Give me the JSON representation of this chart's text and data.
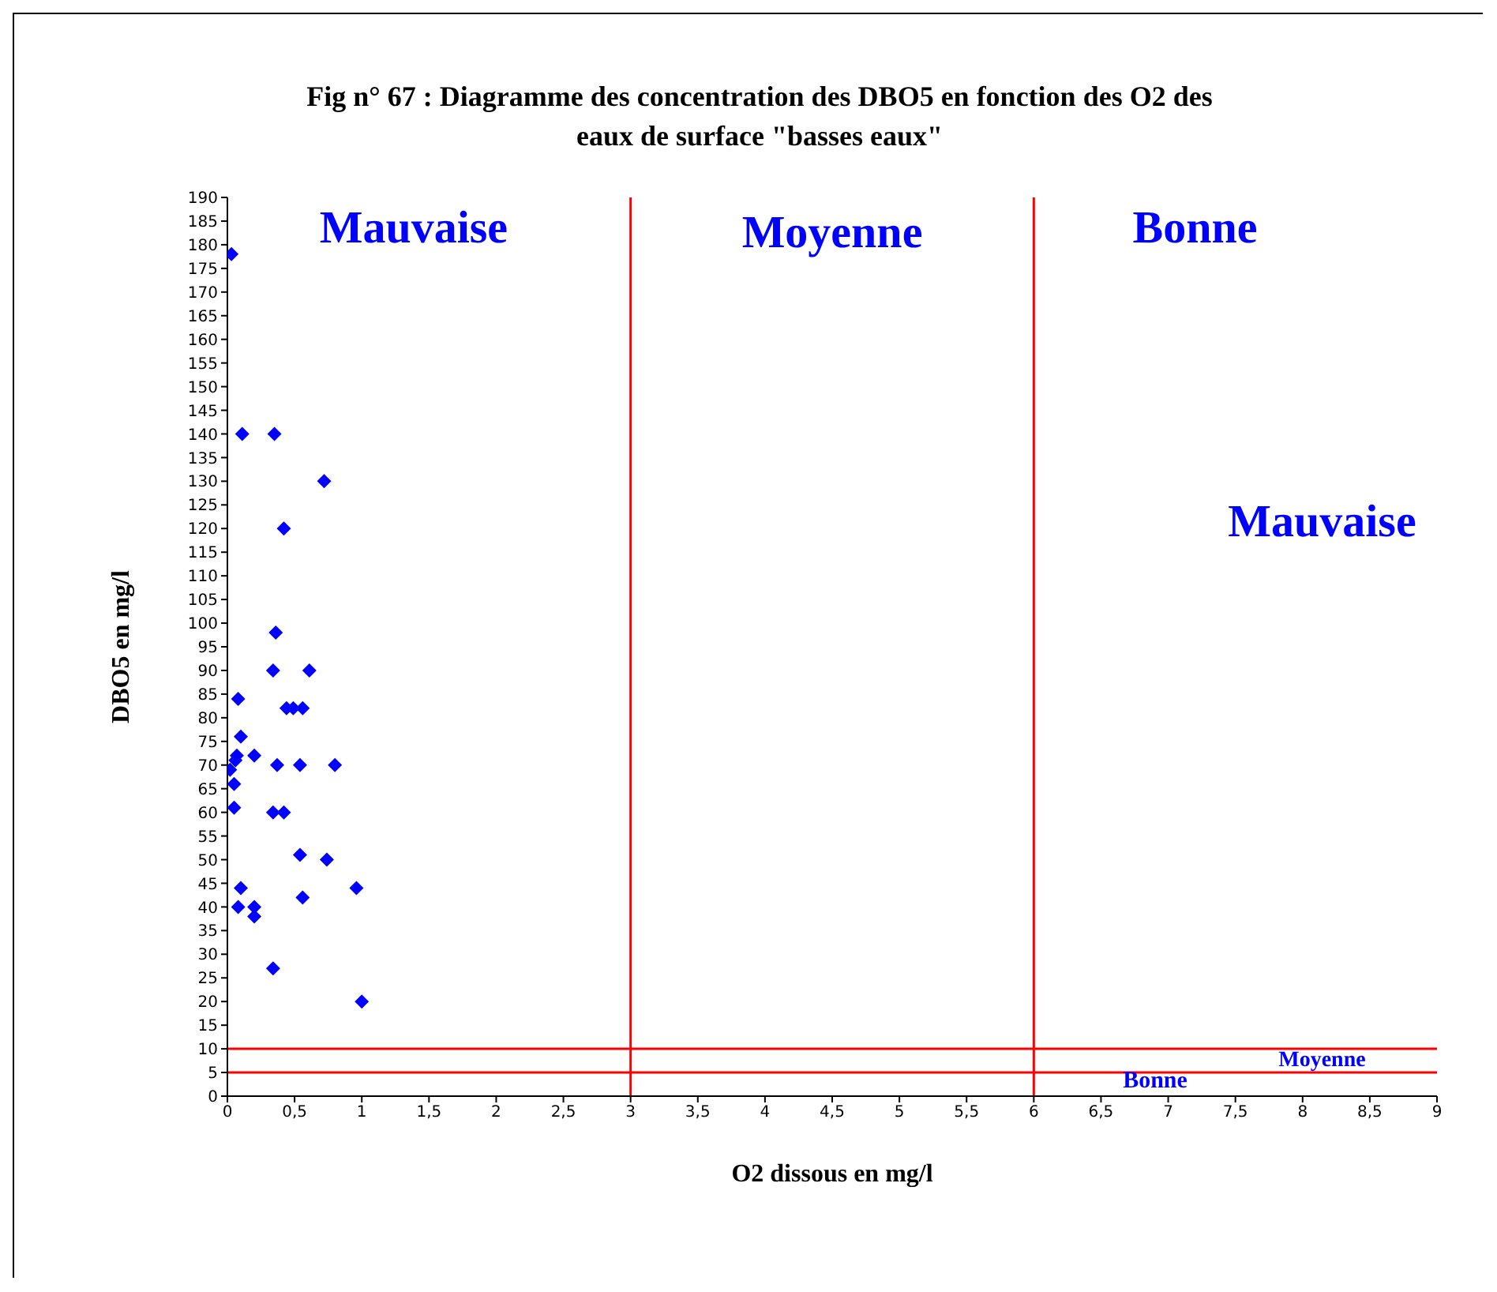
{
  "chart_data": {
    "type": "scatter",
    "title": "Fig n° 67 : Diagramme des concentration des DBO5 en fonction des O2 des eaux de surface \"basses eaux\"",
    "xlabel": "O2 dissous en mg/l",
    "ylabel": "DBO5 en mg/l",
    "x": [
      0.03,
      0.11,
      0.35,
      0.72,
      0.42,
      0.36,
      0.34,
      0.61,
      0.08,
      0.44,
      0.49,
      0.56,
      0.1,
      0.07,
      0.2,
      0.02,
      0.06,
      0.37,
      0.54,
      0.8,
      0.05,
      0.05,
      0.34,
      0.42,
      0.54,
      0.74,
      0.1,
      0.96,
      0.56,
      0.08,
      0.2,
      0.2,
      0.34,
      1.0
    ],
    "values": [
      178,
      140,
      140,
      130,
      120,
      98,
      90,
      90,
      84,
      82,
      82,
      82,
      76,
      72,
      72,
      69,
      71,
      70,
      70,
      70,
      66,
      61,
      60,
      60,
      51,
      50,
      44,
      44,
      42,
      40,
      40,
      38,
      27,
      20
    ],
    "color": "#0000ff",
    "marker": "diamond",
    "xlim": [
      0,
      9
    ],
    "xticks": [
      0,
      {
        "value": 0.5,
        "label": "0,5"
      },
      1,
      {
        "value": 1.5,
        "label": "1,5"
      },
      2,
      {
        "value": 2.5,
        "label": "2,5"
      },
      3,
      {
        "value": 3.5,
        "label": "3,5"
      },
      4,
      {
        "value": 4.5,
        "label": "4,5"
      },
      5,
      {
        "value": 5.5,
        "label": "5,5"
      },
      6,
      {
        "value": 6.5,
        "label": "6,5"
      },
      7,
      {
        "value": 7.5,
        "label": "7,5"
      },
      8,
      {
        "value": 8.5,
        "label": "8,5"
      },
      9
    ],
    "ylim": [
      0,
      190
    ],
    "yticks": [
      0,
      5,
      10,
      15,
      20,
      25,
      30,
      35,
      40,
      45,
      50,
      55,
      60,
      65,
      70,
      75,
      80,
      85,
      90,
      95,
      100,
      105,
      110,
      115,
      120,
      125,
      130,
      135,
      140,
      145,
      150,
      155,
      160,
      165,
      170,
      175,
      180,
      185,
      190
    ],
    "grid": false,
    "legend": false,
    "ref_lines": [
      {
        "axis": "x",
        "value": 3,
        "color": "#ff0000"
      },
      {
        "axis": "x",
        "value": 6,
        "color": "#ff0000"
      },
      {
        "axis": "y",
        "value": 10,
        "color": "#ff0000"
      },
      {
        "axis": "y",
        "value": 5,
        "color": "#ff0000"
      }
    ],
    "annotations": [
      "Mauvaise",
      "Moyenne",
      "Bonne",
      "Mauvaise",
      "Moyenne",
      "Bonne"
    ]
  }
}
